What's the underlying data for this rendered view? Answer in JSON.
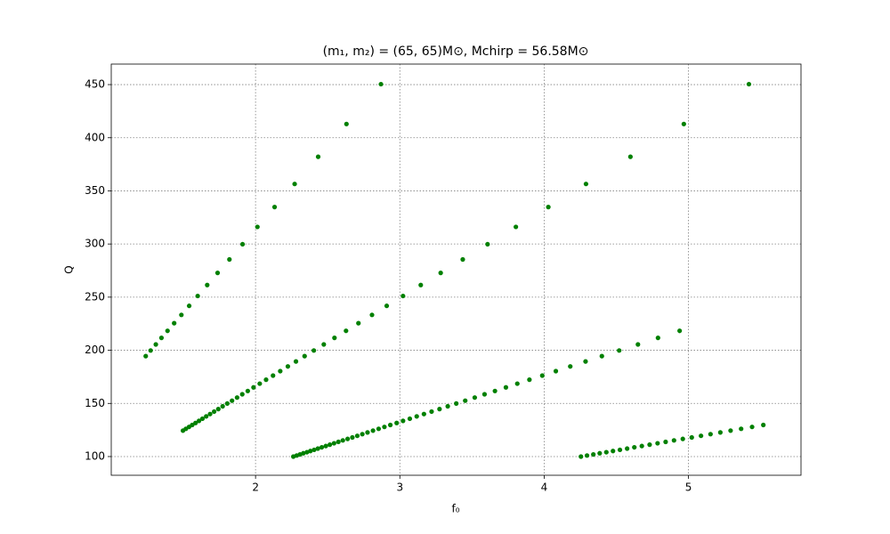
{
  "chart_data": {
    "type": "scatter",
    "title": "(m₁, m₂) = (65, 65)M⊙, Mchirp = 56.58M⊙",
    "x_label": "f₀",
    "y_label": "Q",
    "xlim": [
      1.0,
      5.78
    ],
    "ylim": [
      82.4,
      469.3
    ],
    "xticks": [
      2,
      3,
      4,
      5
    ],
    "yticks": [
      100,
      150,
      200,
      250,
      300,
      350,
      400,
      450
    ],
    "grid": true,
    "series": [
      {
        "color": "#008000",
        "x": [
          1.239,
          1.273,
          1.309,
          1.348,
          1.39,
          1.436,
          1.486,
          1.54,
          1.599,
          1.665,
          1.737,
          1.819,
          1.91,
          2.013,
          2.132,
          2.271,
          2.434,
          2.63,
          2.869
        ],
        "values": [
          194.5,
          199.8,
          205.5,
          211.7,
          218.3,
          225.5,
          233.3,
          241.8,
          251.1,
          261.4,
          272.8,
          285.5,
          299.8,
          316.1,
          334.8,
          356.5,
          382.1,
          412.9,
          450.4
        ]
      },
      {
        "color": "#008000",
        "x": [
          1.497,
          1.517,
          1.539,
          1.561,
          1.584,
          1.608,
          1.632,
          1.658,
          1.685,
          1.713,
          1.742,
          1.772,
          1.804,
          1.837,
          1.872,
          1.908,
          1.946,
          1.986,
          2.029,
          2.073,
          2.121,
          2.171,
          2.224,
          2.28,
          2.34,
          2.404,
          2.473,
          2.547,
          2.627,
          2.713,
          2.807,
          2.909,
          3.022,
          3.145,
          3.283,
          3.436,
          3.608,
          3.804,
          4.029,
          4.29,
          4.598,
          4.968,
          5.419
        ],
        "values": [
          124.4,
          126.1,
          127.9,
          129.7,
          131.6,
          133.6,
          135.6,
          137.8,
          140.0,
          142.3,
          144.7,
          147.3,
          149.9,
          152.6,
          155.5,
          158.6,
          161.7,
          165.1,
          168.6,
          172.3,
          176.2,
          180.4,
          184.8,
          189.5,
          194.5,
          199.8,
          205.5,
          211.7,
          218.3,
          225.5,
          233.3,
          241.8,
          251.1,
          261.4,
          272.8,
          285.5,
          299.8,
          316.1,
          334.8,
          356.5,
          382.1,
          412.9,
          450.4
        ]
      },
      {
        "color": "#008000",
        "x": [
          2.262,
          2.285,
          2.308,
          2.331,
          2.356,
          2.38,
          2.406,
          2.432,
          2.459,
          2.487,
          2.515,
          2.544,
          2.574,
          2.605,
          2.638,
          2.671,
          2.705,
          2.74,
          2.776,
          2.814,
          2.853,
          2.893,
          2.934,
          2.978,
          3.022,
          3.069,
          3.117,
          3.167,
          3.22,
          3.275,
          3.332,
          3.391,
          3.453,
          3.519,
          3.587,
          3.659,
          3.735,
          3.814,
          3.898,
          3.987,
          4.081,
          4.181,
          4.287,
          4.4,
          4.52,
          4.65,
          4.789,
          4.939
        ],
        "values": [
          100.0,
          101.0,
          102.0,
          103.1,
          104.1,
          105.2,
          106.3,
          107.5,
          108.7,
          109.9,
          111.2,
          112.5,
          113.8,
          115.2,
          116.6,
          118.0,
          119.5,
          121.1,
          122.7,
          124.4,
          126.1,
          127.9,
          129.7,
          131.6,
          133.6,
          135.6,
          137.8,
          140.0,
          142.3,
          144.7,
          147.3,
          149.9,
          152.6,
          155.5,
          158.6,
          161.7,
          165.1,
          168.6,
          172.3,
          176.2,
          180.4,
          184.8,
          189.5,
          194.5,
          199.8,
          205.5,
          211.7,
          218.3
        ]
      },
      {
        "color": "#008000",
        "x": [
          4.255,
          4.297,
          4.341,
          4.385,
          4.431,
          4.477,
          4.525,
          4.575,
          4.625,
          4.677,
          4.731,
          4.786,
          4.842,
          4.9,
          4.961,
          5.023,
          5.087,
          5.153,
          5.221,
          5.292,
          5.365,
          5.441,
          5.519
        ],
        "values": [
          100.0,
          101.0,
          102.0,
          103.1,
          104.1,
          105.2,
          106.3,
          107.5,
          108.7,
          109.9,
          111.2,
          112.5,
          113.8,
          115.2,
          116.6,
          118.0,
          119.5,
          121.1,
          122.7,
          124.4,
          126.1,
          127.9,
          129.7
        ]
      }
    ]
  }
}
